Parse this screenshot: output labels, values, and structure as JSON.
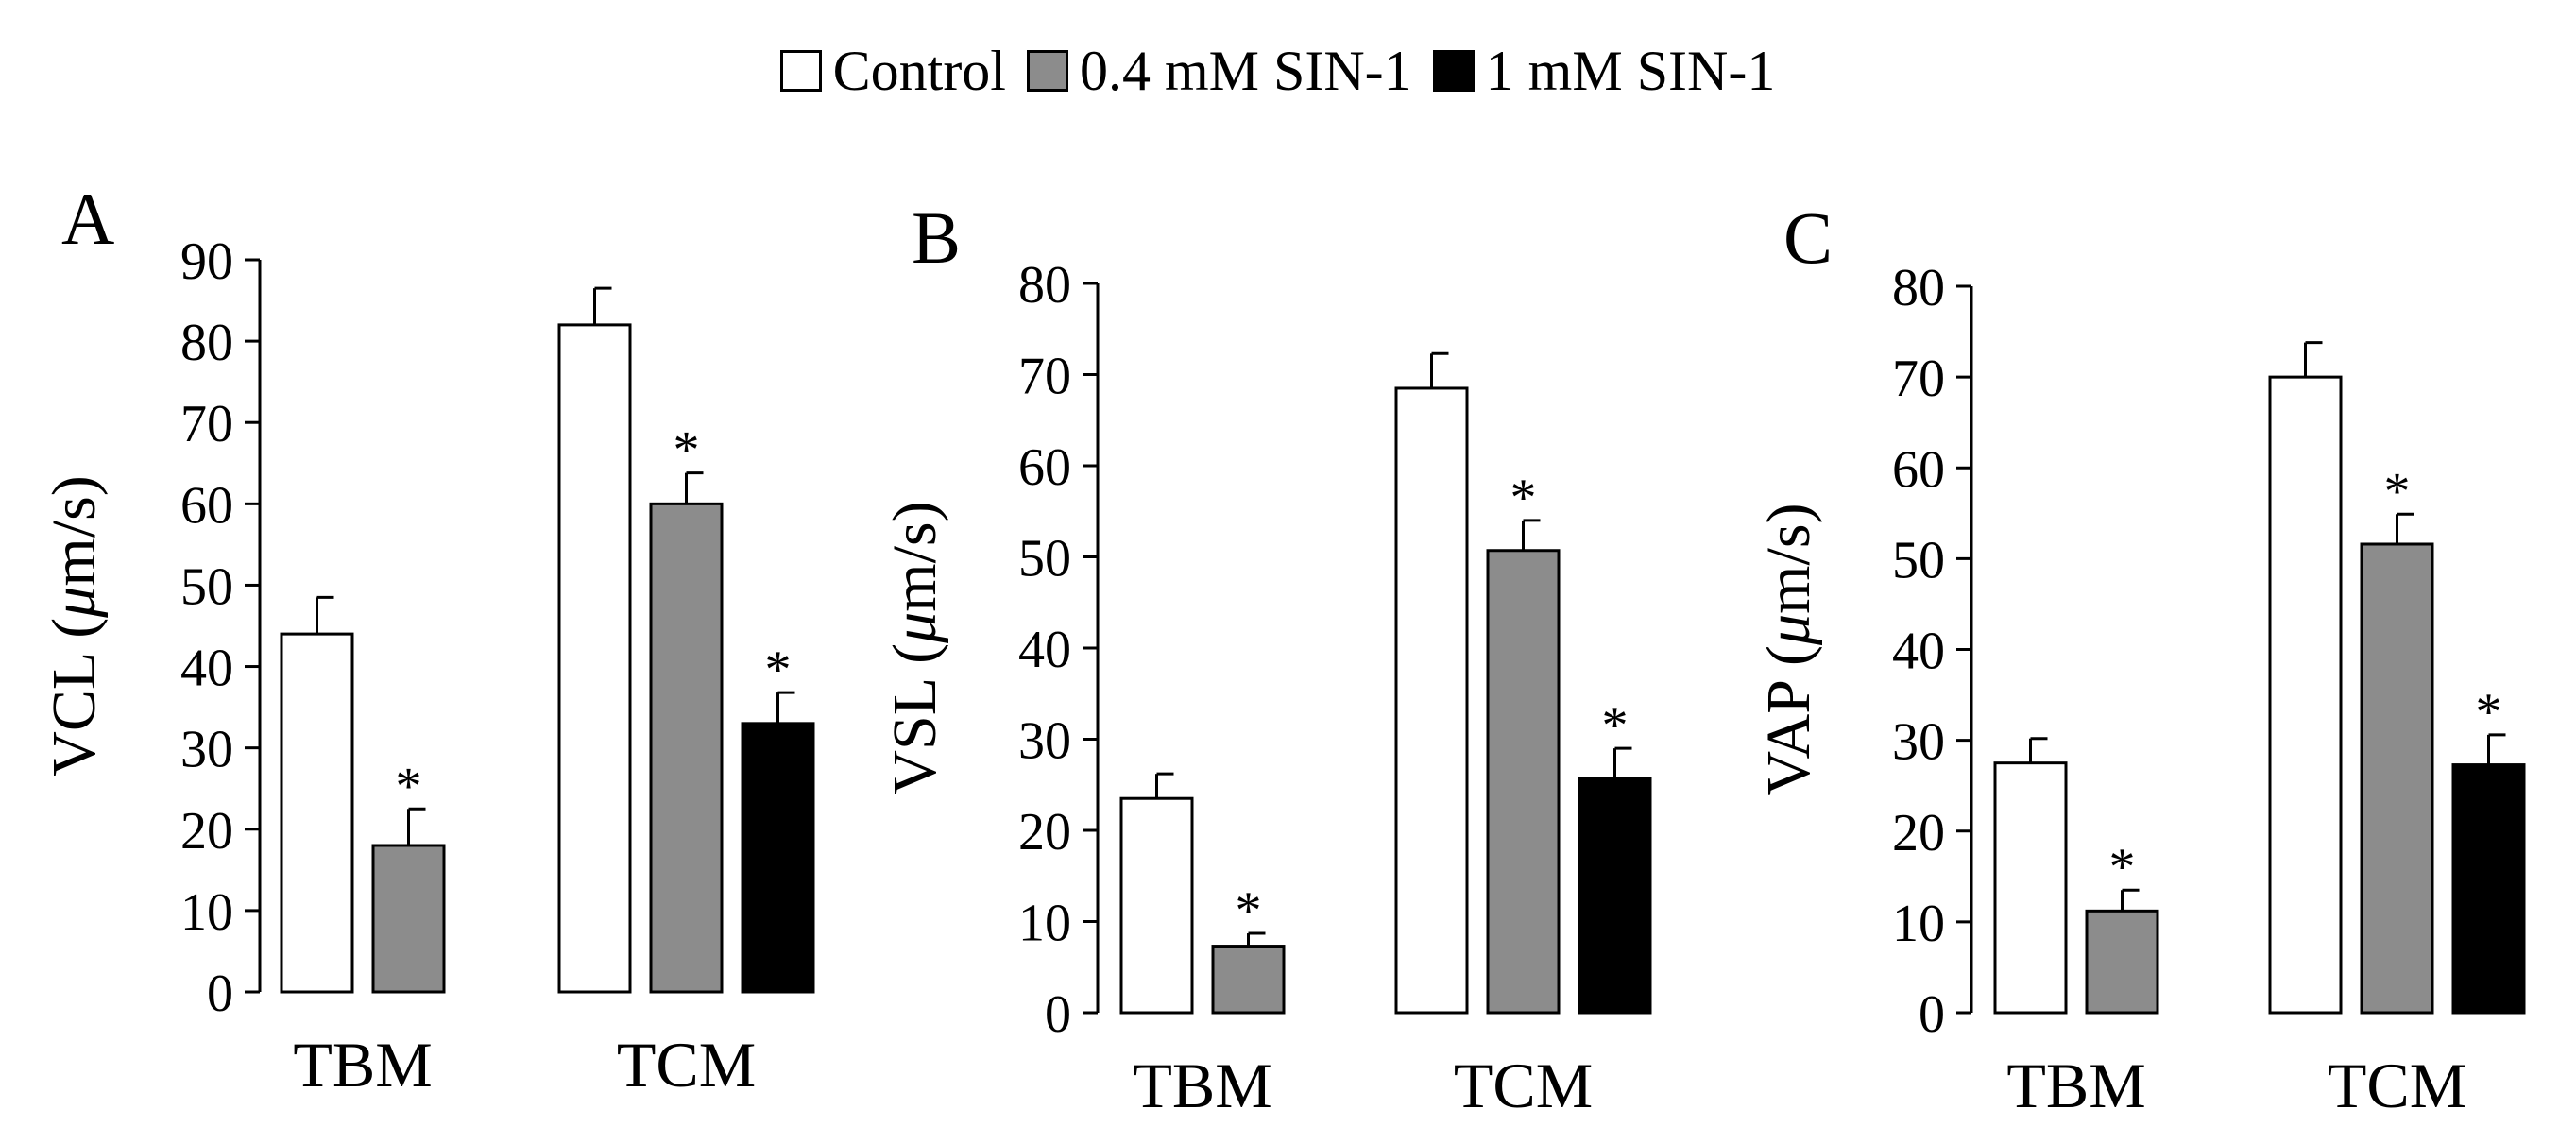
{
  "legend": {
    "items": [
      {
        "label": "Control",
        "color": "#ffffff"
      },
      {
        "label": "0.4 mM SIN-1",
        "color": "#8c8c8c"
      },
      {
        "label": "1 mM SIN-1",
        "color": "#000000"
      }
    ]
  },
  "chart_data": [
    {
      "type": "bar",
      "panel": "A",
      "ylabel_prefix": "VCL (",
      "ylabel_mu": "μ",
      "ylabel_suffix": "m/s)",
      "ylim": [
        0,
        90
      ],
      "yticks": [
        0,
        10,
        20,
        30,
        40,
        50,
        60,
        70,
        80,
        90
      ],
      "groups": [
        {
          "name": "TBM",
          "bars": [
            {
              "series": "Control",
              "value": 44,
              "error": 4.5,
              "significant": false
            },
            {
              "series": "0.4 mM SIN-1",
              "value": 18,
              "error": 4.5,
              "significant": true
            }
          ]
        },
        {
          "name": "TCM",
          "bars": [
            {
              "series": "Control",
              "value": 82,
              "error": 4.5,
              "significant": false
            },
            {
              "series": "0.4 mM SIN-1",
              "value": 60,
              "error": 3.8,
              "significant": true
            },
            {
              "series": "1 mM SIN-1",
              "value": 33,
              "error": 3.8,
              "significant": true
            }
          ]
        }
      ],
      "significance_marker": "*"
    },
    {
      "type": "bar",
      "panel": "B",
      "ylabel_prefix": "VSL (",
      "ylabel_mu": "μ",
      "ylabel_suffix": "m/s)",
      "ylim": [
        0,
        80
      ],
      "yticks": [
        0,
        10,
        20,
        30,
        40,
        50,
        60,
        70,
        80
      ],
      "groups": [
        {
          "name": "TBM",
          "bars": [
            {
              "series": "Control",
              "value": 23.5,
              "error": 2.7,
              "significant": false
            },
            {
              "series": "0.4 mM SIN-1",
              "value": 7.3,
              "error": 1.4,
              "significant": true
            }
          ]
        },
        {
          "name": "TCM",
          "bars": [
            {
              "series": "Control",
              "value": 68.5,
              "error": 3.8,
              "significant": false
            },
            {
              "series": "0.4 mM SIN-1",
              "value": 50.7,
              "error": 3.3,
              "significant": true
            },
            {
              "series": "1 mM SIN-1",
              "value": 25.7,
              "error": 3.3,
              "significant": true
            }
          ]
        }
      ],
      "significance_marker": "*"
    },
    {
      "type": "bar",
      "panel": "C",
      "ylabel_prefix": "VAP (",
      "ylabel_mu": "μ",
      "ylabel_suffix": "m/s)",
      "ylim": [
        0,
        80
      ],
      "yticks": [
        0,
        10,
        20,
        30,
        40,
        50,
        60,
        70,
        80
      ],
      "groups": [
        {
          "name": "TBM",
          "bars": [
            {
              "series": "Control",
              "value": 27.5,
              "error": 2.7,
              "significant": false
            },
            {
              "series": "0.4 mM SIN-1",
              "value": 11.2,
              "error": 2.3,
              "significant": true
            }
          ]
        },
        {
          "name": "TCM",
          "bars": [
            {
              "series": "Control",
              "value": 70,
              "error": 3.8,
              "significant": false
            },
            {
              "series": "0.4 mM SIN-1",
              "value": 51.6,
              "error": 3.3,
              "significant": true
            },
            {
              "series": "1 mM SIN-1",
              "value": 27.3,
              "error": 3.3,
              "significant": true
            }
          ]
        }
      ],
      "significance_marker": "*"
    }
  ]
}
